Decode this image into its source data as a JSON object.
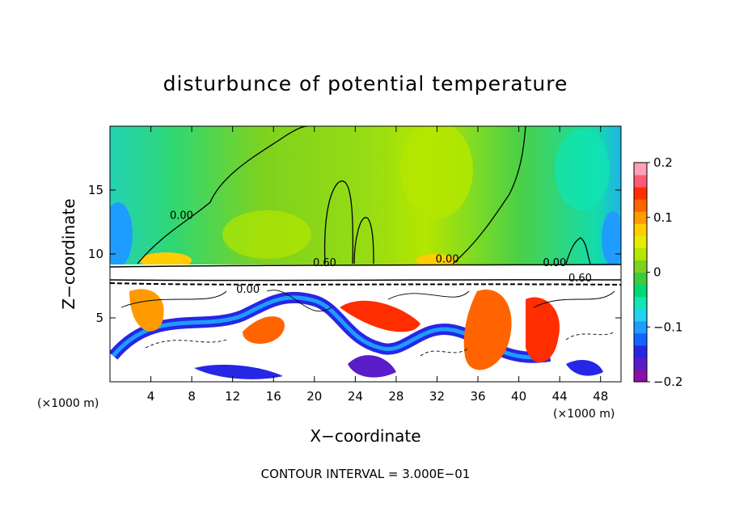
{
  "chart_data": {
    "type": "heatmap",
    "title": "disturbunce of potential temperature",
    "xlabel": "X−coordinate",
    "ylabel": "Z−coordinate",
    "x_unit_left": "(×1000 m)",
    "x_unit_right": "(×1000 m)",
    "xlim": [
      0,
      50
    ],
    "ylim": [
      0,
      20
    ],
    "x_ticks": [
      "4",
      "8",
      "12",
      "16",
      "20",
      "24",
      "28",
      "32",
      "36",
      "40",
      "44",
      "48"
    ],
    "x_tick_values": [
      4,
      8,
      12,
      16,
      20,
      24,
      28,
      32,
      36,
      40,
      44,
      48
    ],
    "y_ticks": [
      "5",
      "10",
      "15"
    ],
    "y_tick_values": [
      5,
      10,
      15
    ],
    "colorbar": {
      "range": [
        -0.2,
        0.2
      ],
      "tick_labels": [
        "0.2",
        "0.1",
        "0",
        "−0.1",
        "−0.2"
      ],
      "tick_values": [
        0.2,
        0.1,
        0,
        -0.1,
        -0.2
      ],
      "colors": [
        "#8b10a8",
        "#5a1cc8",
        "#2626e6",
        "#1464ff",
        "#1e9cff",
        "#22d2f0",
        "#10e6b4",
        "#00d878",
        "#3ccd3c",
        "#7ed21e",
        "#b4e600",
        "#e6eb00",
        "#ffcd00",
        "#ff9b00",
        "#ff6400",
        "#ff2d00",
        "#ff5a78",
        "#ffa0b4"
      ]
    },
    "contour_labels": [
      {
        "text": "0.00",
        "x": 7.0,
        "y": 13.0
      },
      {
        "text": "0.60",
        "x": 21.0,
        "y": 9.3
      },
      {
        "text": "0.00",
        "x": 33.0,
        "y": 9.6
      },
      {
        "text": "0.00",
        "x": 43.5,
        "y": 9.3
      },
      {
        "text": "0.60",
        "x": 46.0,
        "y": 8.1
      },
      {
        "text": "0.00",
        "x": 13.5,
        "y": 7.2
      }
    ],
    "grid": false,
    "footer": "CONTOUR INTERVAL = 3.000E−01"
  }
}
